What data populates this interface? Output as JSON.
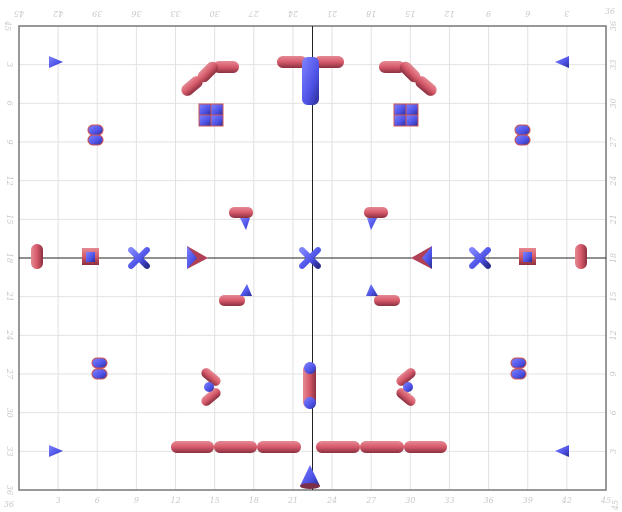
{
  "axes": {
    "x_range": [
      0,
      45
    ],
    "y_range": [
      0,
      36
    ],
    "tick_step": 3,
    "bottom_ticks": [
      "3",
      "6",
      "9",
      "12",
      "15",
      "18",
      "21",
      "24",
      "27",
      "30",
      "33",
      "36",
      "39",
      "42",
      "45"
    ],
    "top_ticks": [
      "45",
      "42",
      "39",
      "36",
      "33",
      "30",
      "27",
      "24",
      "21",
      "18",
      "15",
      "12",
      "9",
      "6",
      "3"
    ],
    "left_ticks": [
      "3",
      "6",
      "9",
      "12",
      "15",
      "18",
      "21",
      "24",
      "27",
      "30",
      "33",
      "36"
    ],
    "right_ticks": [
      "36",
      "33",
      "30",
      "27",
      "24",
      "21",
      "18",
      "15",
      "12",
      "9",
      "6",
      "3"
    ],
    "corner_top_left": "45",
    "corner_bottom_right": "45",
    "corner_top_right": "36",
    "corner_bottom_left": "36",
    "grid": true
  },
  "colors": {
    "red_piece": "#d9606e",
    "blue_piece": "#5a5ef0",
    "grid": "#e2e2e2",
    "axis": "#222222",
    "frame": "#777777"
  }
}
